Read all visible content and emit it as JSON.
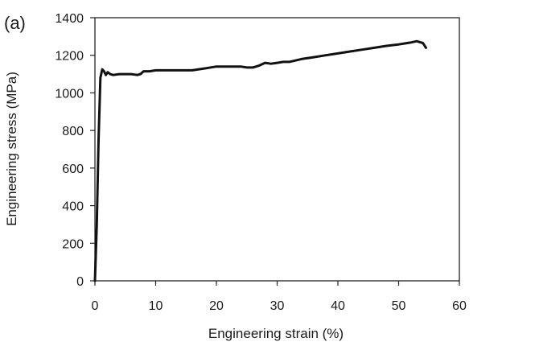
{
  "panel_label": "(a)",
  "colors": {
    "line": "#111111",
    "axis": "#222222",
    "text": "#1a1a1a"
  },
  "chart_data": {
    "type": "line",
    "title": "",
    "xlabel": "Engineering strain (%)",
    "ylabel": "Engineering stress (MPa)",
    "xlim": [
      0,
      60
    ],
    "ylim": [
      0,
      1400
    ],
    "xticks": [
      0,
      10,
      20,
      30,
      40,
      50,
      60
    ],
    "yticks": [
      0,
      200,
      400,
      600,
      800,
      1000,
      1200,
      1400
    ],
    "grid": false,
    "legend": "none",
    "series": [
      {
        "x": [
          0,
          0.3,
          0.6,
          0.9,
          1.2,
          1.5,
          1.8,
          2.1,
          2.5,
          3,
          4,
          5,
          6,
          7,
          7.5,
          8,
          9,
          10,
          12,
          14,
          16,
          18,
          20,
          22,
          24,
          25,
          26,
          27,
          28,
          29,
          30,
          31,
          32,
          34,
          36,
          38,
          40,
          42,
          44,
          46,
          48,
          50,
          52,
          53,
          53.5,
          54,
          54.5
        ],
        "y": [
          0,
          300,
          750,
          1080,
          1125,
          1115,
          1095,
          1110,
          1100,
          1095,
          1100,
          1100,
          1100,
          1095,
          1100,
          1115,
          1115,
          1120,
          1120,
          1120,
          1120,
          1130,
          1140,
          1140,
          1140,
          1135,
          1135,
          1145,
          1160,
          1155,
          1160,
          1165,
          1165,
          1180,
          1190,
          1200,
          1210,
          1220,
          1230,
          1240,
          1250,
          1258,
          1268,
          1275,
          1270,
          1265,
          1240
        ]
      }
    ]
  }
}
